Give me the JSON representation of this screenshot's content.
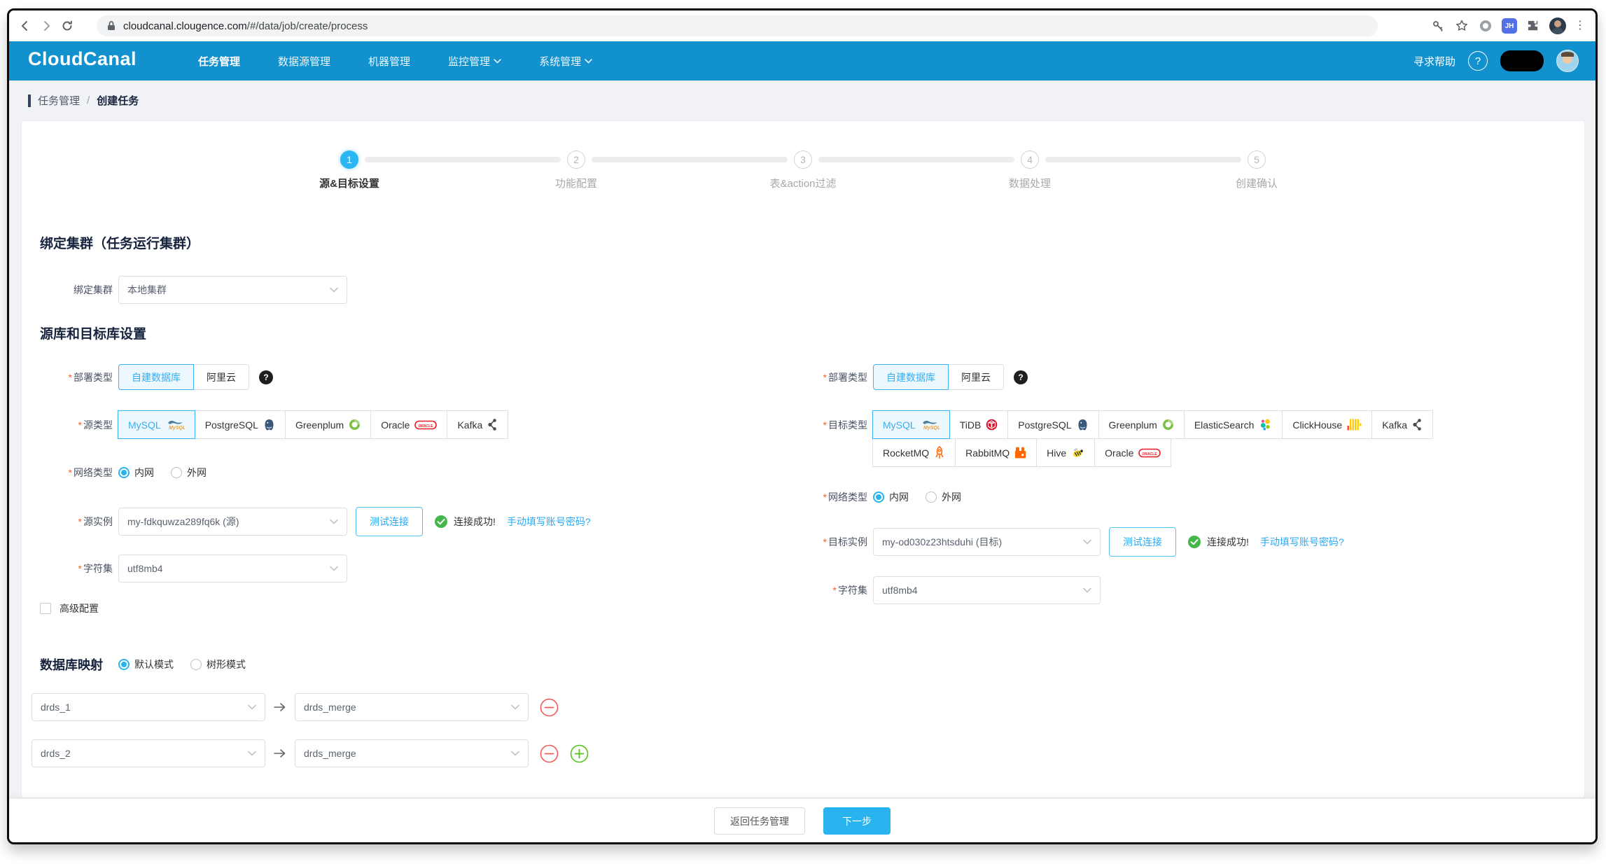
{
  "ui": {
    "required_marker": "*"
  },
  "browser": {
    "url_domain": "cloudcanal.clougence.com",
    "url_path": "/#/data/job/create/process",
    "profile_badge": "JH"
  },
  "navbar": {
    "brand": "CloudCanal",
    "items": [
      {
        "label": "任务管理",
        "active": true,
        "caret": false
      },
      {
        "label": "数据源管理",
        "active": false,
        "caret": false
      },
      {
        "label": "机器管理",
        "active": false,
        "caret": false
      },
      {
        "label": "监控管理",
        "active": false,
        "caret": true
      },
      {
        "label": "系统管理",
        "active": false,
        "caret": true
      }
    ],
    "help_label": "寻求帮助"
  },
  "breadcrumb": {
    "parent": "任务管理",
    "separator": "/",
    "current": "创建任务"
  },
  "stepper": [
    {
      "num": "1",
      "label": "源&目标设置",
      "active": true
    },
    {
      "num": "2",
      "label": "功能配置",
      "active": false
    },
    {
      "num": "3",
      "label": "表&action过滤",
      "active": false
    },
    {
      "num": "4",
      "label": "数据处理",
      "active": false
    },
    {
      "num": "5",
      "label": "创建确认",
      "active": false
    }
  ],
  "cluster_section": {
    "title": "绑定集群（任务运行集群）",
    "field_label": "绑定集群",
    "value": "本地集群"
  },
  "source_target_section": {
    "title": "源库和目标库设置"
  },
  "source": {
    "deploy_label": "部署类型",
    "deploy_options": [
      "自建数据库",
      "阿里云"
    ],
    "deploy_selected": 0,
    "type_label": "源类型",
    "types": [
      {
        "label": "MySQL",
        "icon": "mysql",
        "selected": true
      },
      {
        "label": "PostgreSQL",
        "icon": "postgresql",
        "selected": false
      },
      {
        "label": "Greenplum",
        "icon": "greenplum",
        "selected": false
      },
      {
        "label": "Oracle",
        "icon": "oracle",
        "selected": false
      },
      {
        "label": "Kafka",
        "icon": "kafka",
        "selected": false
      }
    ],
    "network_label": "网络类型",
    "network_options": [
      "内网",
      "外网"
    ],
    "network_selected": 0,
    "instance_label": "源实例",
    "instance_value": "my-fdkquwza289fq6k (源)",
    "test_button": "测试连接",
    "success_text": "连接成功!",
    "manual_link": "手动填写账号密码?",
    "charset_label": "字符集",
    "charset_value": "utf8mb4",
    "advanced_label": "高级配置"
  },
  "target": {
    "deploy_label": "部署类型",
    "deploy_options": [
      "自建数据库",
      "阿里云"
    ],
    "deploy_selected": 0,
    "type_label": "目标类型",
    "types_row1": [
      {
        "label": "MySQL",
        "icon": "mysql",
        "selected": true
      },
      {
        "label": "TiDB",
        "icon": "tidb",
        "selected": false
      },
      {
        "label": "PostgreSQL",
        "icon": "postgresql",
        "selected": false
      },
      {
        "label": "Greenplum",
        "icon": "greenplum",
        "selected": false
      },
      {
        "label": "ElasticSearch",
        "icon": "elasticsearch",
        "selected": false
      },
      {
        "label": "ClickHouse",
        "icon": "clickhouse",
        "selected": false
      },
      {
        "label": "Kafka",
        "icon": "kafka",
        "selected": false
      }
    ],
    "types_row2": [
      {
        "label": "RocketMQ",
        "icon": "rocketmq",
        "selected": false
      },
      {
        "label": "RabbitMQ",
        "icon": "rabbitmq",
        "selected": false
      },
      {
        "label": "Hive",
        "icon": "hive",
        "selected": false
      },
      {
        "label": "Oracle",
        "icon": "oracle",
        "selected": false
      }
    ],
    "network_label": "网络类型",
    "network_options": [
      "内网",
      "外网"
    ],
    "network_selected": 0,
    "instance_label": "目标实例",
    "instance_value": "my-od030z23htsduhi (目标)",
    "test_button": "测试连接",
    "success_text": "连接成功!",
    "manual_link": "手动填写账号密码?",
    "charset_label": "字符集",
    "charset_value": "utf8mb4"
  },
  "db_mapping": {
    "title": "数据库映射",
    "modes": [
      "默认模式",
      "树形模式"
    ],
    "mode_selected": 0,
    "rows": [
      {
        "from": "drds_1",
        "to": "drds_merge",
        "removable": true,
        "addable": false
      },
      {
        "from": "drds_2",
        "to": "drds_merge",
        "removable": true,
        "addable": true
      }
    ]
  },
  "footer": {
    "back": "返回任务管理",
    "next": "下一步"
  },
  "colors": {
    "navbar": "#1191cd",
    "primary": "#29b4ef",
    "link": "#2ea8f0",
    "success": "#45b649",
    "danger": "#f56c6c",
    "page_bg": "#f0f2f5"
  }
}
